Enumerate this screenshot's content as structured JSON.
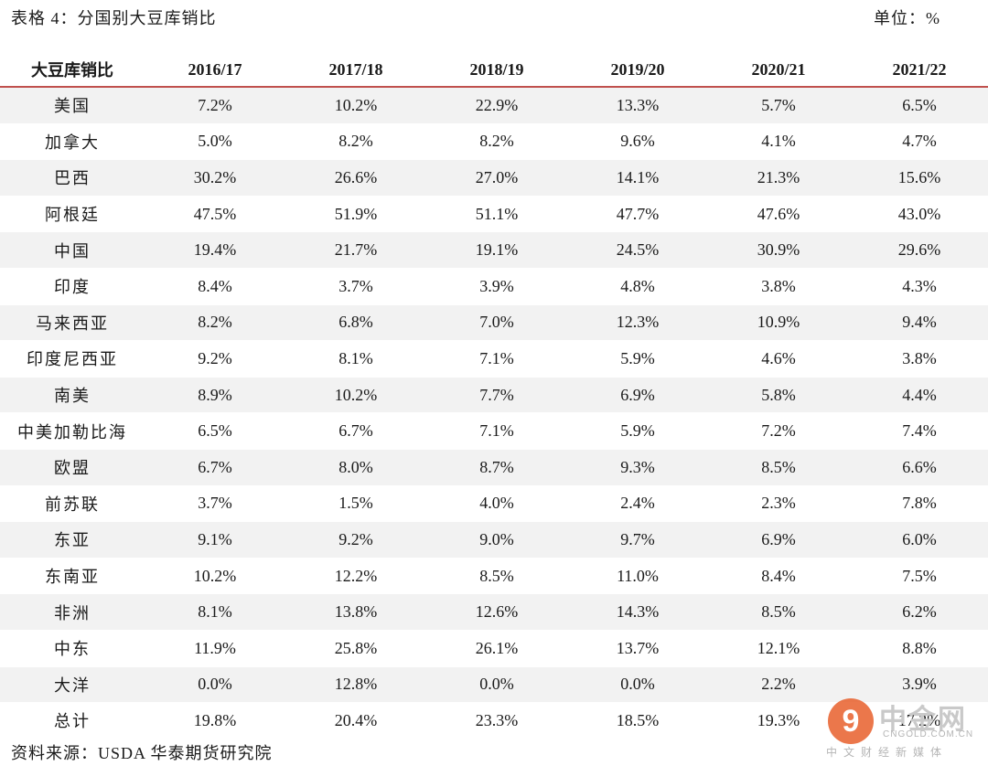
{
  "caption": "表格 4：分国别大豆库销比",
  "unit": "单位：%",
  "table": {
    "headers": [
      "大豆库销比",
      "2016/17",
      "2017/18",
      "2018/19",
      "2019/20",
      "2020/21",
      "2021/22"
    ],
    "rows": [
      [
        "美国",
        "7.2%",
        "10.2%",
        "22.9%",
        "13.3%",
        "5.7%",
        "6.5%"
      ],
      [
        "加拿大",
        "5.0%",
        "8.2%",
        "8.2%",
        "9.6%",
        "4.1%",
        "4.7%"
      ],
      [
        "巴西",
        "30.2%",
        "26.6%",
        "27.0%",
        "14.1%",
        "21.3%",
        "15.6%"
      ],
      [
        "阿根廷",
        "47.5%",
        "51.9%",
        "51.1%",
        "47.7%",
        "47.6%",
        "43.0%"
      ],
      [
        "中国",
        "19.4%",
        "21.7%",
        "19.1%",
        "24.5%",
        "30.9%",
        "29.6%"
      ],
      [
        "印度",
        "8.4%",
        "3.7%",
        "3.9%",
        "4.8%",
        "3.8%",
        "4.3%"
      ],
      [
        "马来西亚",
        "8.2%",
        "6.8%",
        "7.0%",
        "12.3%",
        "10.9%",
        "9.4%"
      ],
      [
        "印度尼西亚",
        "9.2%",
        "8.1%",
        "7.1%",
        "5.9%",
        "4.6%",
        "3.8%"
      ],
      [
        "南美",
        "8.9%",
        "10.2%",
        "7.7%",
        "6.9%",
        "5.8%",
        "4.4%"
      ],
      [
        "中美加勒比海",
        "6.5%",
        "6.7%",
        "7.1%",
        "5.9%",
        "7.2%",
        "7.4%"
      ],
      [
        "欧盟",
        "6.7%",
        "8.0%",
        "8.7%",
        "9.3%",
        "8.5%",
        "6.6%"
      ],
      [
        "前苏联",
        "3.7%",
        "1.5%",
        "4.0%",
        "2.4%",
        "2.3%",
        "7.8%"
      ],
      [
        "东亚",
        "9.1%",
        "9.2%",
        "9.0%",
        "9.7%",
        "6.9%",
        "6.0%"
      ],
      [
        "东南亚",
        "10.2%",
        "12.2%",
        "8.5%",
        "11.0%",
        "8.4%",
        "7.5%"
      ],
      [
        "非洲",
        "8.1%",
        "13.8%",
        "12.6%",
        "14.3%",
        "8.5%",
        "6.2%"
      ],
      [
        "中东",
        "11.9%",
        "25.8%",
        "26.1%",
        "13.7%",
        "12.1%",
        "8.8%"
      ],
      [
        "大洋",
        "0.0%",
        "12.8%",
        "0.0%",
        "0.0%",
        "2.2%",
        "3.9%"
      ],
      [
        "总计",
        "19.8%",
        "20.4%",
        "23.3%",
        "18.5%",
        "19.3%",
        "17.2%"
      ]
    ]
  },
  "source": "资料来源：USDA  华泰期货研究院",
  "watermark": {
    "logo_glyph": "9",
    "name": "中金网",
    "domain": "CNGOLD.COM.CN",
    "subtitle": "中文财经新媒体",
    "color": "#e8602c"
  },
  "colors": {
    "header_rule": "#c0504d",
    "band": "#f2f2f2"
  }
}
